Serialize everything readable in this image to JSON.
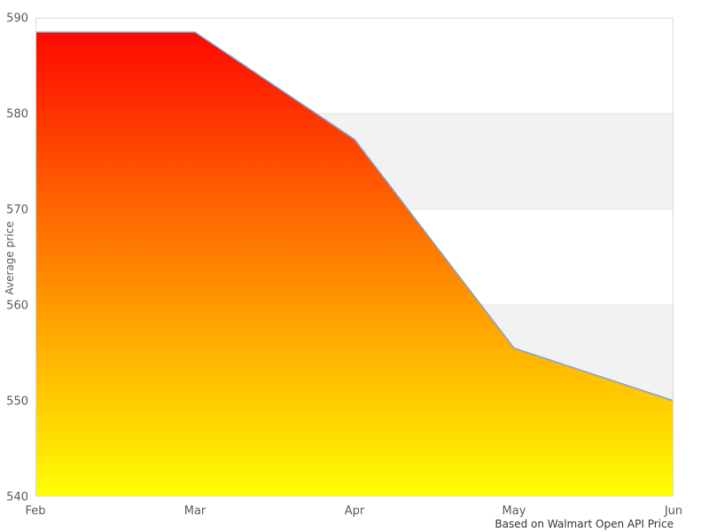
{
  "chart_data": {
    "type": "area",
    "title": "",
    "categories": [
      "Feb",
      "Mar",
      "Apr",
      "May",
      "Jun"
    ],
    "series": [
      {
        "name": "Average price",
        "values": [
          588.5,
          588.5,
          577.3,
          555.5,
          550
        ]
      }
    ],
    "xlabel": "",
    "ylabel": "Average price",
    "ylim": [
      540,
      590
    ],
    "yticks": [
      540,
      550,
      560,
      570,
      580,
      590
    ],
    "legend": "none",
    "grid": "alternating-horizontal-bands",
    "colors": {
      "line": "#7fa5d1",
      "gradient_top": "#ff0000",
      "gradient_bottom": "#ffff00",
      "band_alt": "#f2f2f2",
      "band_edge": "#e4e4e4",
      "plot_border": "#d9d9d9",
      "tick_text": "#5a5a5a",
      "caption_text": "#333333"
    }
  },
  "footer": {
    "caption": "Based on Walmart Open API Price"
  }
}
